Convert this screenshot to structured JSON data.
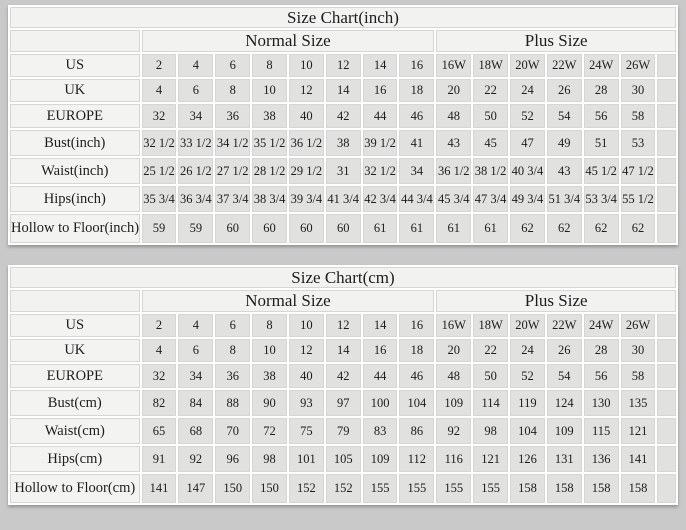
{
  "colors": {
    "page_background": "#c9c9c9",
    "table_grid": "#ffffff",
    "label_cell_bg": "#f3f3f1",
    "value_cell_bg": "#e1e1df",
    "cell_border": "#d6d6d4",
    "text": "#1d1d1d"
  },
  "chart_data": [
    {
      "type": "table",
      "title": "Size Chart(inch)",
      "column_groups": [
        {
          "label": "Normal Size",
          "span": 8
        },
        {
          "label": "Plus Size",
          "span": 6
        }
      ],
      "column_headers": [
        "2",
        "4",
        "6",
        "8",
        "10",
        "12",
        "14",
        "16",
        "16W",
        "18W",
        "20W",
        "22W",
        "24W",
        "26W"
      ],
      "rows": [
        {
          "label": "US",
          "values": [
            "2",
            "4",
            "6",
            "8",
            "10",
            "12",
            "14",
            "16",
            "16W",
            "18W",
            "20W",
            "22W",
            "24W",
            "26W"
          ]
        },
        {
          "label": "UK",
          "values": [
            "4",
            "6",
            "8",
            "10",
            "12",
            "14",
            "16",
            "18",
            "20",
            "22",
            "24",
            "26",
            "28",
            "30"
          ]
        },
        {
          "label": "EUROPE",
          "values": [
            "32",
            "34",
            "36",
            "38",
            "40",
            "42",
            "44",
            "46",
            "48",
            "50",
            "52",
            "54",
            "56",
            "58"
          ]
        },
        {
          "label": "Bust(inch)",
          "values": [
            "32 1/2",
            "33 1/2",
            "34 1/2",
            "35 1/2",
            "36 1/2",
            "38",
            "39 1/2",
            "41",
            "43",
            "45",
            "47",
            "49",
            "51",
            "53"
          ]
        },
        {
          "label": "Waist(inch)",
          "values": [
            "25 1/2",
            "26 1/2",
            "27 1/2",
            "28 1/2",
            "29 1/2",
            "31",
            "32 1/2",
            "34",
            "36 1/2",
            "38 1/2",
            "40 3/4",
            "43",
            "45 1/2",
            "47 1/2"
          ]
        },
        {
          "label": "Hips(inch)",
          "values": [
            "35 3/4",
            "36 3/4",
            "37 3/4",
            "38 3/4",
            "39 3/4",
            "41 3/4",
            "42 3/4",
            "44 3/4",
            "45 3/4",
            "47 3/4",
            "49 3/4",
            "51 3/4",
            "53 3/4",
            "55 1/2"
          ]
        },
        {
          "label": "Hollow to Floor(inch)",
          "values": [
            "59",
            "59",
            "60",
            "60",
            "60",
            "60",
            "61",
            "61",
            "61",
            "61",
            "62",
            "62",
            "62",
            "62"
          ]
        }
      ]
    },
    {
      "type": "table",
      "title": "Size Chart(cm)",
      "column_groups": [
        {
          "label": "Normal Size",
          "span": 8
        },
        {
          "label": "Plus Size",
          "span": 6
        }
      ],
      "column_headers": [
        "2",
        "4",
        "6",
        "8",
        "10",
        "12",
        "14",
        "16",
        "16W",
        "18W",
        "20W",
        "22W",
        "24W",
        "26W"
      ],
      "rows": [
        {
          "label": "US",
          "values": [
            "2",
            "4",
            "6",
            "8",
            "10",
            "12",
            "14",
            "16",
            "16W",
            "18W",
            "20W",
            "22W",
            "24W",
            "26W"
          ]
        },
        {
          "label": "UK",
          "values": [
            "4",
            "6",
            "8",
            "10",
            "12",
            "14",
            "16",
            "18",
            "20",
            "22",
            "24",
            "26",
            "28",
            "30"
          ]
        },
        {
          "label": "EUROPE",
          "values": [
            "32",
            "34",
            "36",
            "38",
            "40",
            "42",
            "44",
            "46",
            "48",
            "50",
            "52",
            "54",
            "56",
            "58"
          ]
        },
        {
          "label": "Bust(cm)",
          "values": [
            "82",
            "84",
            "88",
            "90",
            "93",
            "97",
            "100",
            "104",
            "109",
            "114",
            "119",
            "124",
            "130",
            "135"
          ]
        },
        {
          "label": "Waist(cm)",
          "values": [
            "65",
            "68",
            "70",
            "72",
            "75",
            "79",
            "83",
            "86",
            "92",
            "98",
            "104",
            "109",
            "115",
            "121"
          ]
        },
        {
          "label": "Hips(cm)",
          "values": [
            "91",
            "92",
            "96",
            "98",
            "101",
            "105",
            "109",
            "112",
            "116",
            "121",
            "126",
            "131",
            "136",
            "141"
          ]
        },
        {
          "label": "Hollow to Floor(cm)",
          "values": [
            "141",
            "147",
            "150",
            "150",
            "152",
            "152",
            "155",
            "155",
            "155",
            "155",
            "158",
            "158",
            "158",
            "158"
          ]
        }
      ]
    }
  ]
}
